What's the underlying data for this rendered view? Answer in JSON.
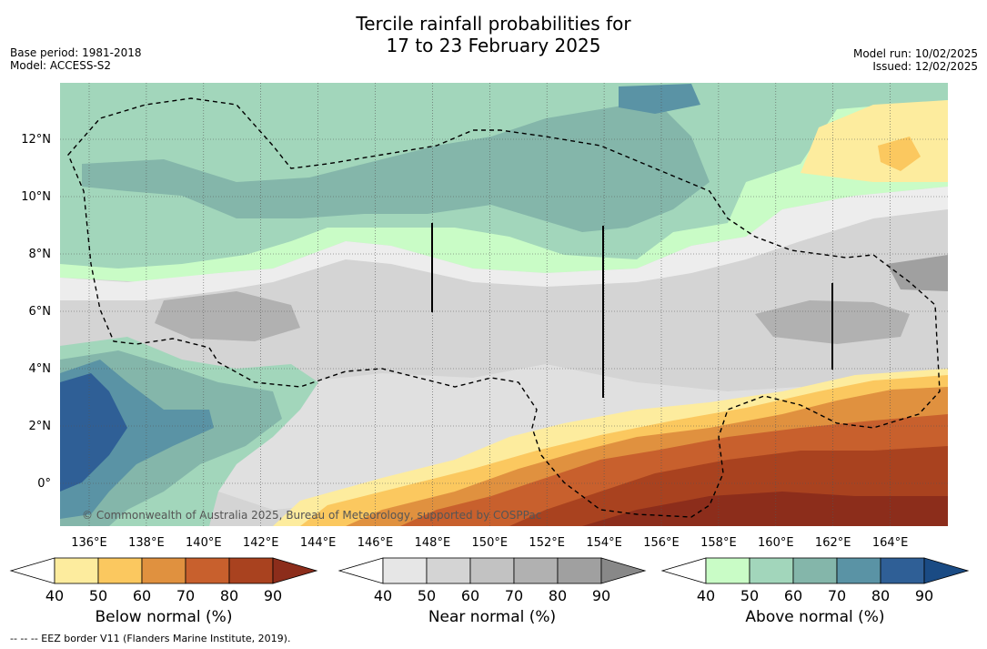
{
  "title_line1": "Tercile rainfall probabilities for",
  "title_line2": "17 to 23 February 2025",
  "base_period": "Base period: 1981-2018",
  "model": "Model: ACCESS-S2",
  "model_run": "Model run: 10/02/2025",
  "issued": "Issued: 12/02/2025",
  "copyright": "© Commonwealth of Australia 2025, Bureau of Meteorology, supported by COSPPac",
  "footnote": "--  --  -- EEZ border V11 (Flanders Marine Institute, 2019).",
  "map": {
    "lon_labels": [
      "136°E",
      "138°E",
      "140°E",
      "142°E",
      "144°E",
      "146°E",
      "148°E",
      "150°E",
      "152°E",
      "154°E",
      "156°E",
      "158°E",
      "160°E",
      "162°E",
      "164°E"
    ],
    "lat_labels": [
      "12°N",
      "10°N",
      "8°N",
      "6°N",
      "4°N",
      "2°N",
      "0°"
    ]
  },
  "colorbars": [
    {
      "label": "Below normal (%)",
      "ticks": [
        "40",
        "50",
        "60",
        "70",
        "80",
        "90"
      ],
      "colors": [
        "#ffffff",
        "#fdec9e",
        "#fbc85f",
        "#e0913f",
        "#c8602d",
        "#a9421f",
        "#8c2d1b"
      ]
    },
    {
      "label": "Near normal (%)",
      "ticks": [
        "40",
        "50",
        "60",
        "70",
        "80",
        "90"
      ],
      "colors": [
        "#ffffff",
        "#e6e6e6",
        "#d4d4d4",
        "#c2c2c2",
        "#b1b1b1",
        "#a0a0a0",
        "#888888"
      ]
    },
    {
      "label": "Above normal (%)",
      "ticks": [
        "40",
        "50",
        "60",
        "70",
        "80",
        "90"
      ],
      "colors": [
        "#ffffff",
        "#c9fcc6",
        "#a2d6bb",
        "#84b6aa",
        "#5a93a5",
        "#2f5f96",
        "#1a4b84"
      ]
    }
  ]
}
